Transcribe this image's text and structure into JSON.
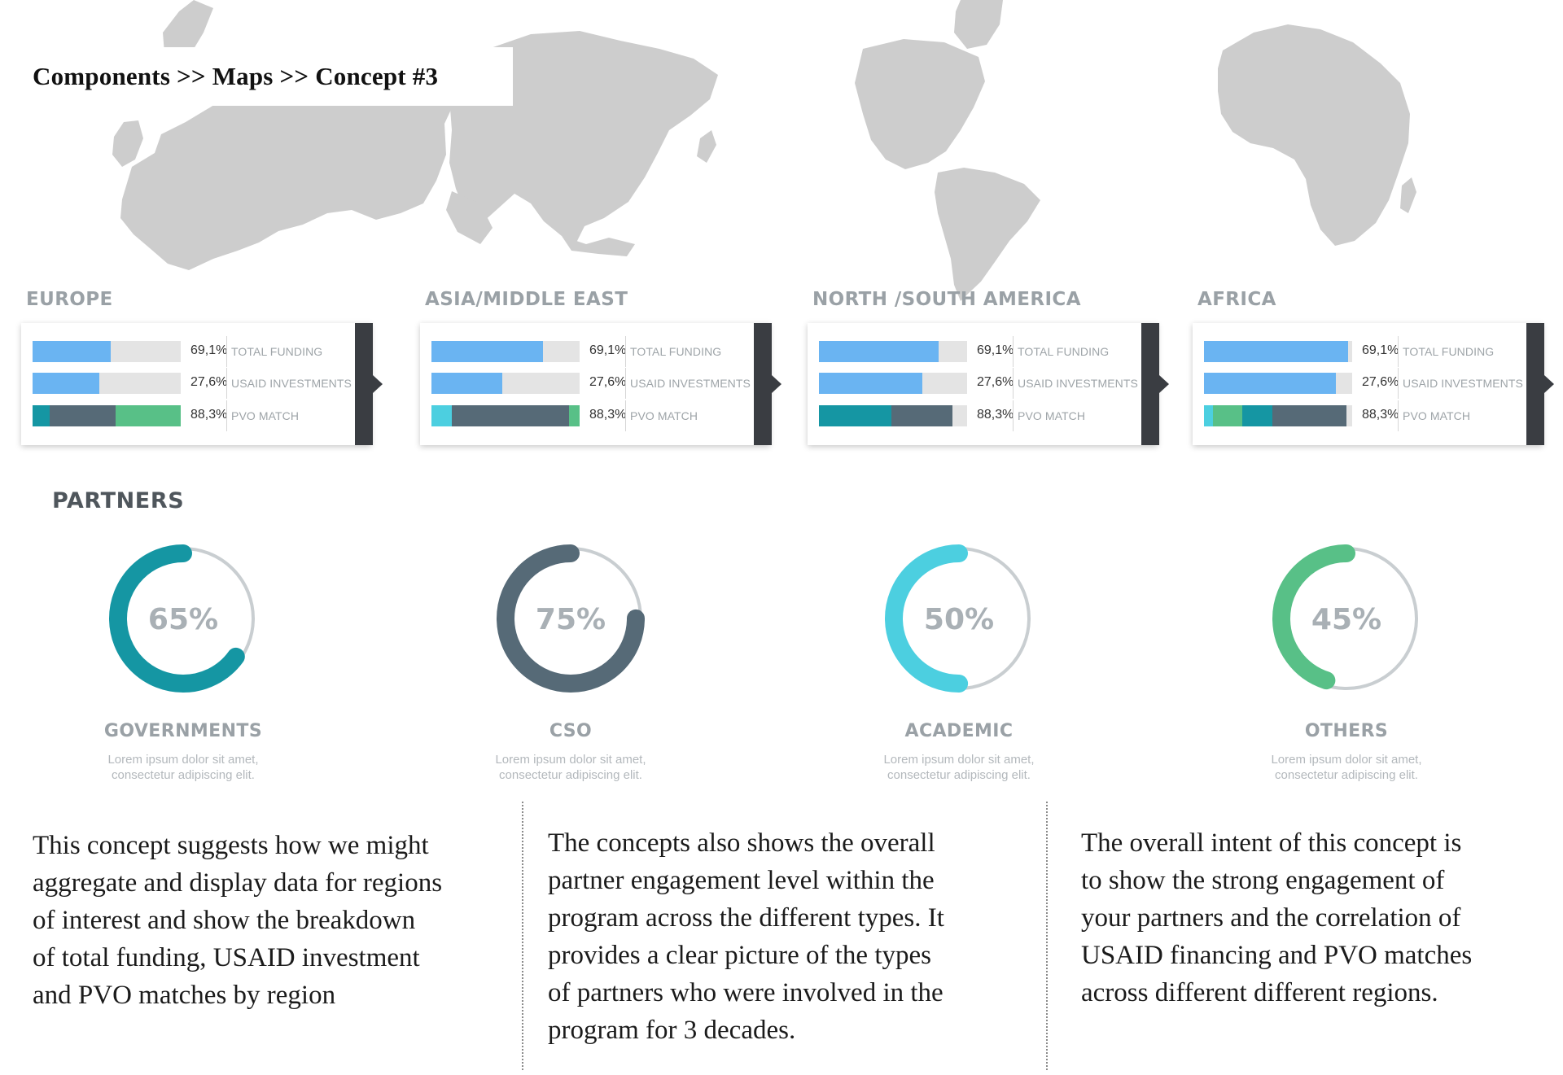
{
  "breadcrumb": "Components >> Maps >> Concept #3",
  "colors": {
    "map_land": "#cdcdcd",
    "blue": "#6ab4f2",
    "teal": "#1596a3",
    "slate": "#566a77",
    "green": "#58c087",
    "cyan": "#4ccfe0",
    "track": "#e4e4e4"
  },
  "regions": [
    {
      "name": "EUROPE",
      "metrics": [
        {
          "value": "69,1%",
          "label": "TOTAL FUNDING",
          "segments": [
            {
              "color": "#6ab4f2",
              "fraction": 0.525
            }
          ]
        },
        {
          "value": "27,6%",
          "label": "USAID INVESTMENTS",
          "segments": [
            {
              "color": "#6ab4f2",
              "fraction": 0.45
            }
          ]
        },
        {
          "value": "88,3%",
          "label": "PVO MATCH",
          "segments": [
            {
              "color": "#1596a3",
              "fraction": 0.115
            },
            {
              "color": "#566a77",
              "fraction": 0.445
            },
            {
              "color": "#58c087",
              "fraction": 0.44
            }
          ]
        }
      ]
    },
    {
      "name": "ASIA/MIDDLE EAST",
      "metrics": [
        {
          "value": "69,1%",
          "label": "TOTAL FUNDING",
          "segments": [
            {
              "color": "#6ab4f2",
              "fraction": 0.755
            }
          ]
        },
        {
          "value": "27,6%",
          "label": "USAID INVESTMENTS",
          "segments": [
            {
              "color": "#6ab4f2",
              "fraction": 0.48
            }
          ]
        },
        {
          "value": "88,3%",
          "label": "PVO MATCH",
          "segments": [
            {
              "color": "#4ccfe0",
              "fraction": 0.14
            },
            {
              "color": "#566a77",
              "fraction": 0.79
            },
            {
              "color": "#58c087",
              "fraction": 0.07
            }
          ]
        }
      ]
    },
    {
      "name": "NORTH /SOUTH AMERICA",
      "metrics": [
        {
          "value": "69,1%",
          "label": "TOTAL FUNDING",
          "segments": [
            {
              "color": "#6ab4f2",
              "fraction": 0.81
            }
          ]
        },
        {
          "value": "27,6%",
          "label": "USAID INVESTMENTS",
          "segments": [
            {
              "color": "#6ab4f2",
              "fraction": 0.7
            }
          ]
        },
        {
          "value": "88,3%",
          "label": "PVO MATCH",
          "segments": [
            {
              "color": "#1596a3",
              "fraction": 0.49
            },
            {
              "color": "#566a77",
              "fraction": 0.41
            }
          ]
        }
      ]
    },
    {
      "name": "AFRICA",
      "metrics": [
        {
          "value": "69,1%",
          "label": "TOTAL FUNDING",
          "segments": [
            {
              "color": "#6ab4f2",
              "fraction": 0.97
            }
          ]
        },
        {
          "value": "27,6%",
          "label": "USAID INVESTMENTS",
          "segments": [
            {
              "color": "#6ab4f2",
              "fraction": 0.89
            }
          ]
        },
        {
          "value": "88,3%",
          "label": "PVO MATCH",
          "segments": [
            {
              "color": "#4ccfe0",
              "fraction": 0.06
            },
            {
              "color": "#58c087",
              "fraction": 0.2
            },
            {
              "color": "#1596a3",
              "fraction": 0.2
            },
            {
              "color": "#566a77",
              "fraction": 0.5
            }
          ]
        }
      ]
    }
  ],
  "partners": {
    "heading": "PARTNERS",
    "items": [
      {
        "percent_label": "65%",
        "percent": 65,
        "color": "#1596a3",
        "title": "GOVERNMENTS",
        "desc_line1": "Lorem ipsum dolor sit amet,",
        "desc_line2": "consectetur adipiscing elit."
      },
      {
        "percent_label": "75%",
        "percent": 75,
        "color": "#566a77",
        "title": "CSO",
        "desc_line1": "Lorem ipsum dolor sit amet,",
        "desc_line2": "consectetur adipiscing elit."
      },
      {
        "percent_label": "50%",
        "percent": 50,
        "color": "#4ccfe0",
        "title": "ACADEMIC",
        "desc_line1": "Lorem ipsum dolor sit amet,",
        "desc_line2": "consectetur adipiscing elit."
      },
      {
        "percent_label": "45%",
        "percent": 45,
        "color": "#58c087",
        "title": "OTHERS",
        "desc_line1": "Lorem ipsum dolor sit amet,",
        "desc_line2": "consectetur adipiscing elit."
      }
    ]
  },
  "notes": [
    {
      "lines": [
        "This concept suggests how we might",
        "aggregate and display data for regions",
        "of interest and show the breakdown",
        "of total funding, USAID investment",
        "and PVO matches by region"
      ]
    },
    {
      "lines": [
        "The concepts also shows the overall",
        "partner engagement level within the",
        "program across the different types. It",
        "provides a clear picture of the types",
        "of partners who were involved in the",
        "program for 3 decades."
      ]
    },
    {
      "lines": [
        "The overall intent of this concept is",
        "to show the strong engagement of",
        "your partners and the correlation of",
        "USAID financing and PVO matches",
        "across different different regions."
      ]
    }
  ]
}
